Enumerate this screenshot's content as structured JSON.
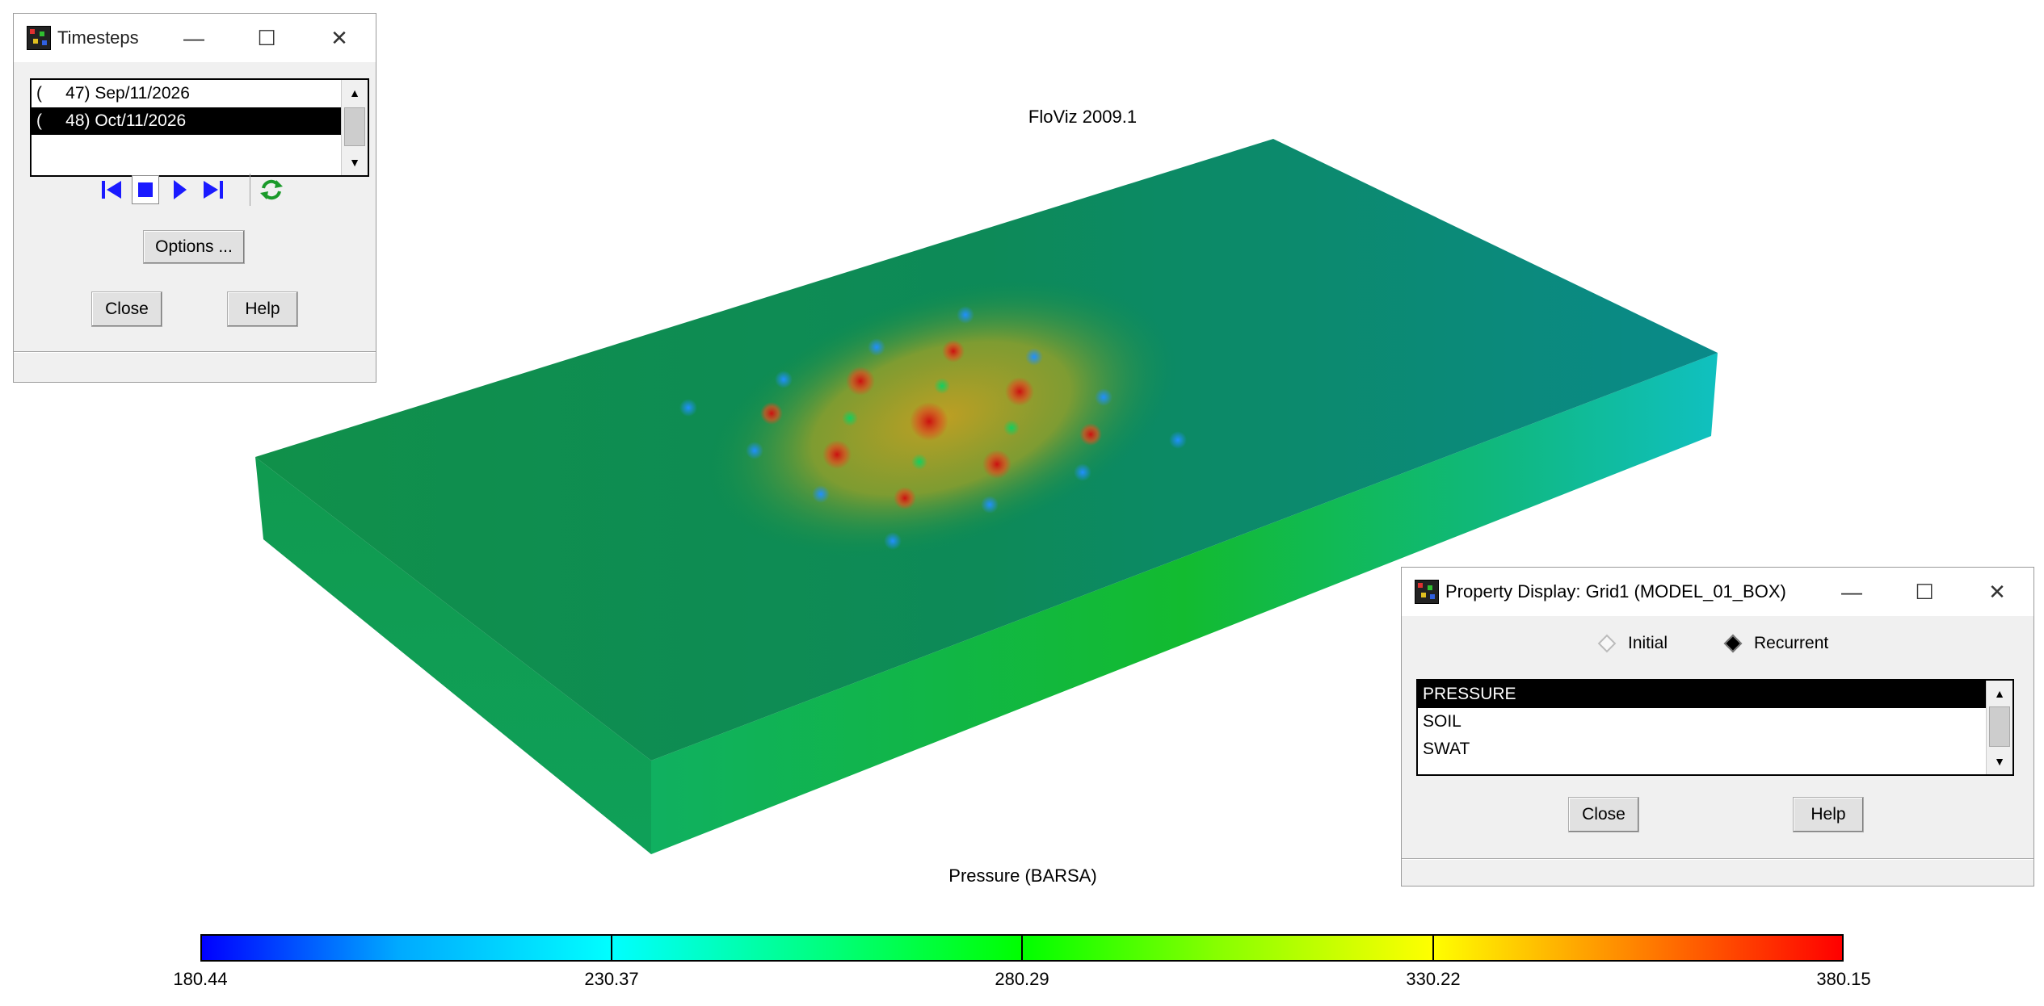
{
  "viewport": {
    "title": "FloViz 2009.1",
    "legend": {
      "title": "Pressure (BARSA)",
      "tick_labels": [
        "180.44",
        "230.37",
        "280.29",
        "330.22",
        "380.15"
      ]
    }
  },
  "timesteps_window": {
    "title": "Timesteps",
    "list": [
      "(     47) Sep/11/2026",
      "(     48) Oct/11/2026"
    ],
    "selected_index": 1,
    "options_label": "Options ...",
    "close_label": "Close",
    "help_label": "Help",
    "icons": [
      "first-frame-icon",
      "stop-icon",
      "play-icon",
      "last-frame-icon",
      "loop-icon"
    ]
  },
  "property_window": {
    "title": "Property Display: Grid1 (MODEL_01_BOX)",
    "radio_initial": "Initial",
    "radio_recurrent": "Recurrent",
    "selected_mode": "Recurrent",
    "list": [
      "PRESSURE",
      "SOIL",
      "SWAT"
    ],
    "selected_index": 0,
    "close_label": "Close",
    "help_label": "Help"
  },
  "colors": {
    "selection": "#000000",
    "player_blue": "#1a1aff",
    "loop_green": "#1a9a2a",
    "top_face_left": "#0e8f4a",
    "top_face_right": "#0a8a86",
    "hotspot": "#d04010"
  }
}
